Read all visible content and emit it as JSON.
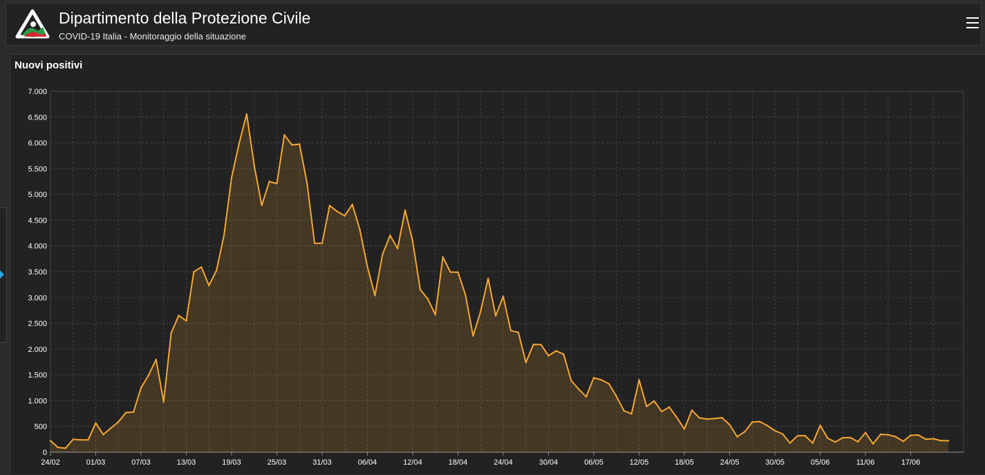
{
  "header": {
    "title": "Dipartimento della Protezione Civile",
    "subtitle": "COVID-19 Italia - Monitoraggio della situazione",
    "logo_icon": "protezione-civile-logo",
    "menu_icon": "hamburger-menu-icon"
  },
  "colors": {
    "line": "#f6a834",
    "area": "rgba(246,168,52,0.16)",
    "grid": "#444444",
    "background": "#222222"
  },
  "panel": {
    "title": "Nuovi positivi"
  },
  "chart_data": {
    "type": "area",
    "title": "Nuovi positivi",
    "ylim": [
      0,
      7000
    ],
    "y_ticks": [
      0,
      500,
      1000,
      1500,
      2000,
      2500,
      3000,
      3500,
      4000,
      4500,
      5000,
      5500,
      6000,
      6500,
      7000
    ],
    "y_tick_labels": [
      "0",
      "500",
      "1.000",
      "1.500",
      "2.000",
      "2.500",
      "3.000",
      "3.500",
      "4.000",
      "4.500",
      "5.000",
      "5.500",
      "6.000",
      "6.500",
      "7.000"
    ],
    "x_start": "2020-02-24",
    "x_tick_labels": [
      "24/02",
      "01/03",
      "07/03",
      "13/03",
      "19/03",
      "25/03",
      "31/03",
      "06/04",
      "12/04",
      "18/04",
      "24/04",
      "30/04",
      "06/05",
      "12/05",
      "18/05",
      "24/05",
      "30/05",
      "05/06",
      "11/06",
      "17/06"
    ],
    "x_tick_index_step": 6,
    "grid": true,
    "series": [
      {
        "values": [
          221,
          93,
          78,
          250,
          238,
          240,
          566,
          342,
          466,
          587,
          769,
          778,
          1247,
          1492,
          1797,
          977,
          2313,
          2651,
          2547,
          3497,
          3590,
          3233,
          3526,
          4207,
          5322,
          5986,
          6557,
          5560,
          4789,
          5249,
          5210,
          6153,
          5959,
          5974,
          5217,
          4050,
          4053,
          4782,
          4668,
          4585,
          4805,
          4316,
          3599,
          3039,
          3836,
          4204,
          3951,
          4694,
          4092,
          3153,
          2972,
          2667,
          3786,
          3493,
          3491,
          3047,
          2256,
          2729,
          3370,
          2646,
          3021,
          2357,
          2324,
          1739,
          2091,
          2086,
          1872,
          1965,
          1900,
          1389,
          1221,
          1075,
          1444,
          1401,
          1327,
          1083,
          802,
          744,
          1402,
          888,
          992,
          789,
          875,
          675,
          451,
          813,
          665,
          642,
          652,
          669,
          531,
          300,
          397,
          584,
          593,
          516,
          416,
          355,
          178,
          318,
          321,
          177,
          518,
          270,
          197,
          280,
          283,
          202,
          379,
          163,
          346,
          338,
          301,
          210,
          329,
          333,
          251,
          262,
          224,
          221
        ]
      }
    ]
  }
}
